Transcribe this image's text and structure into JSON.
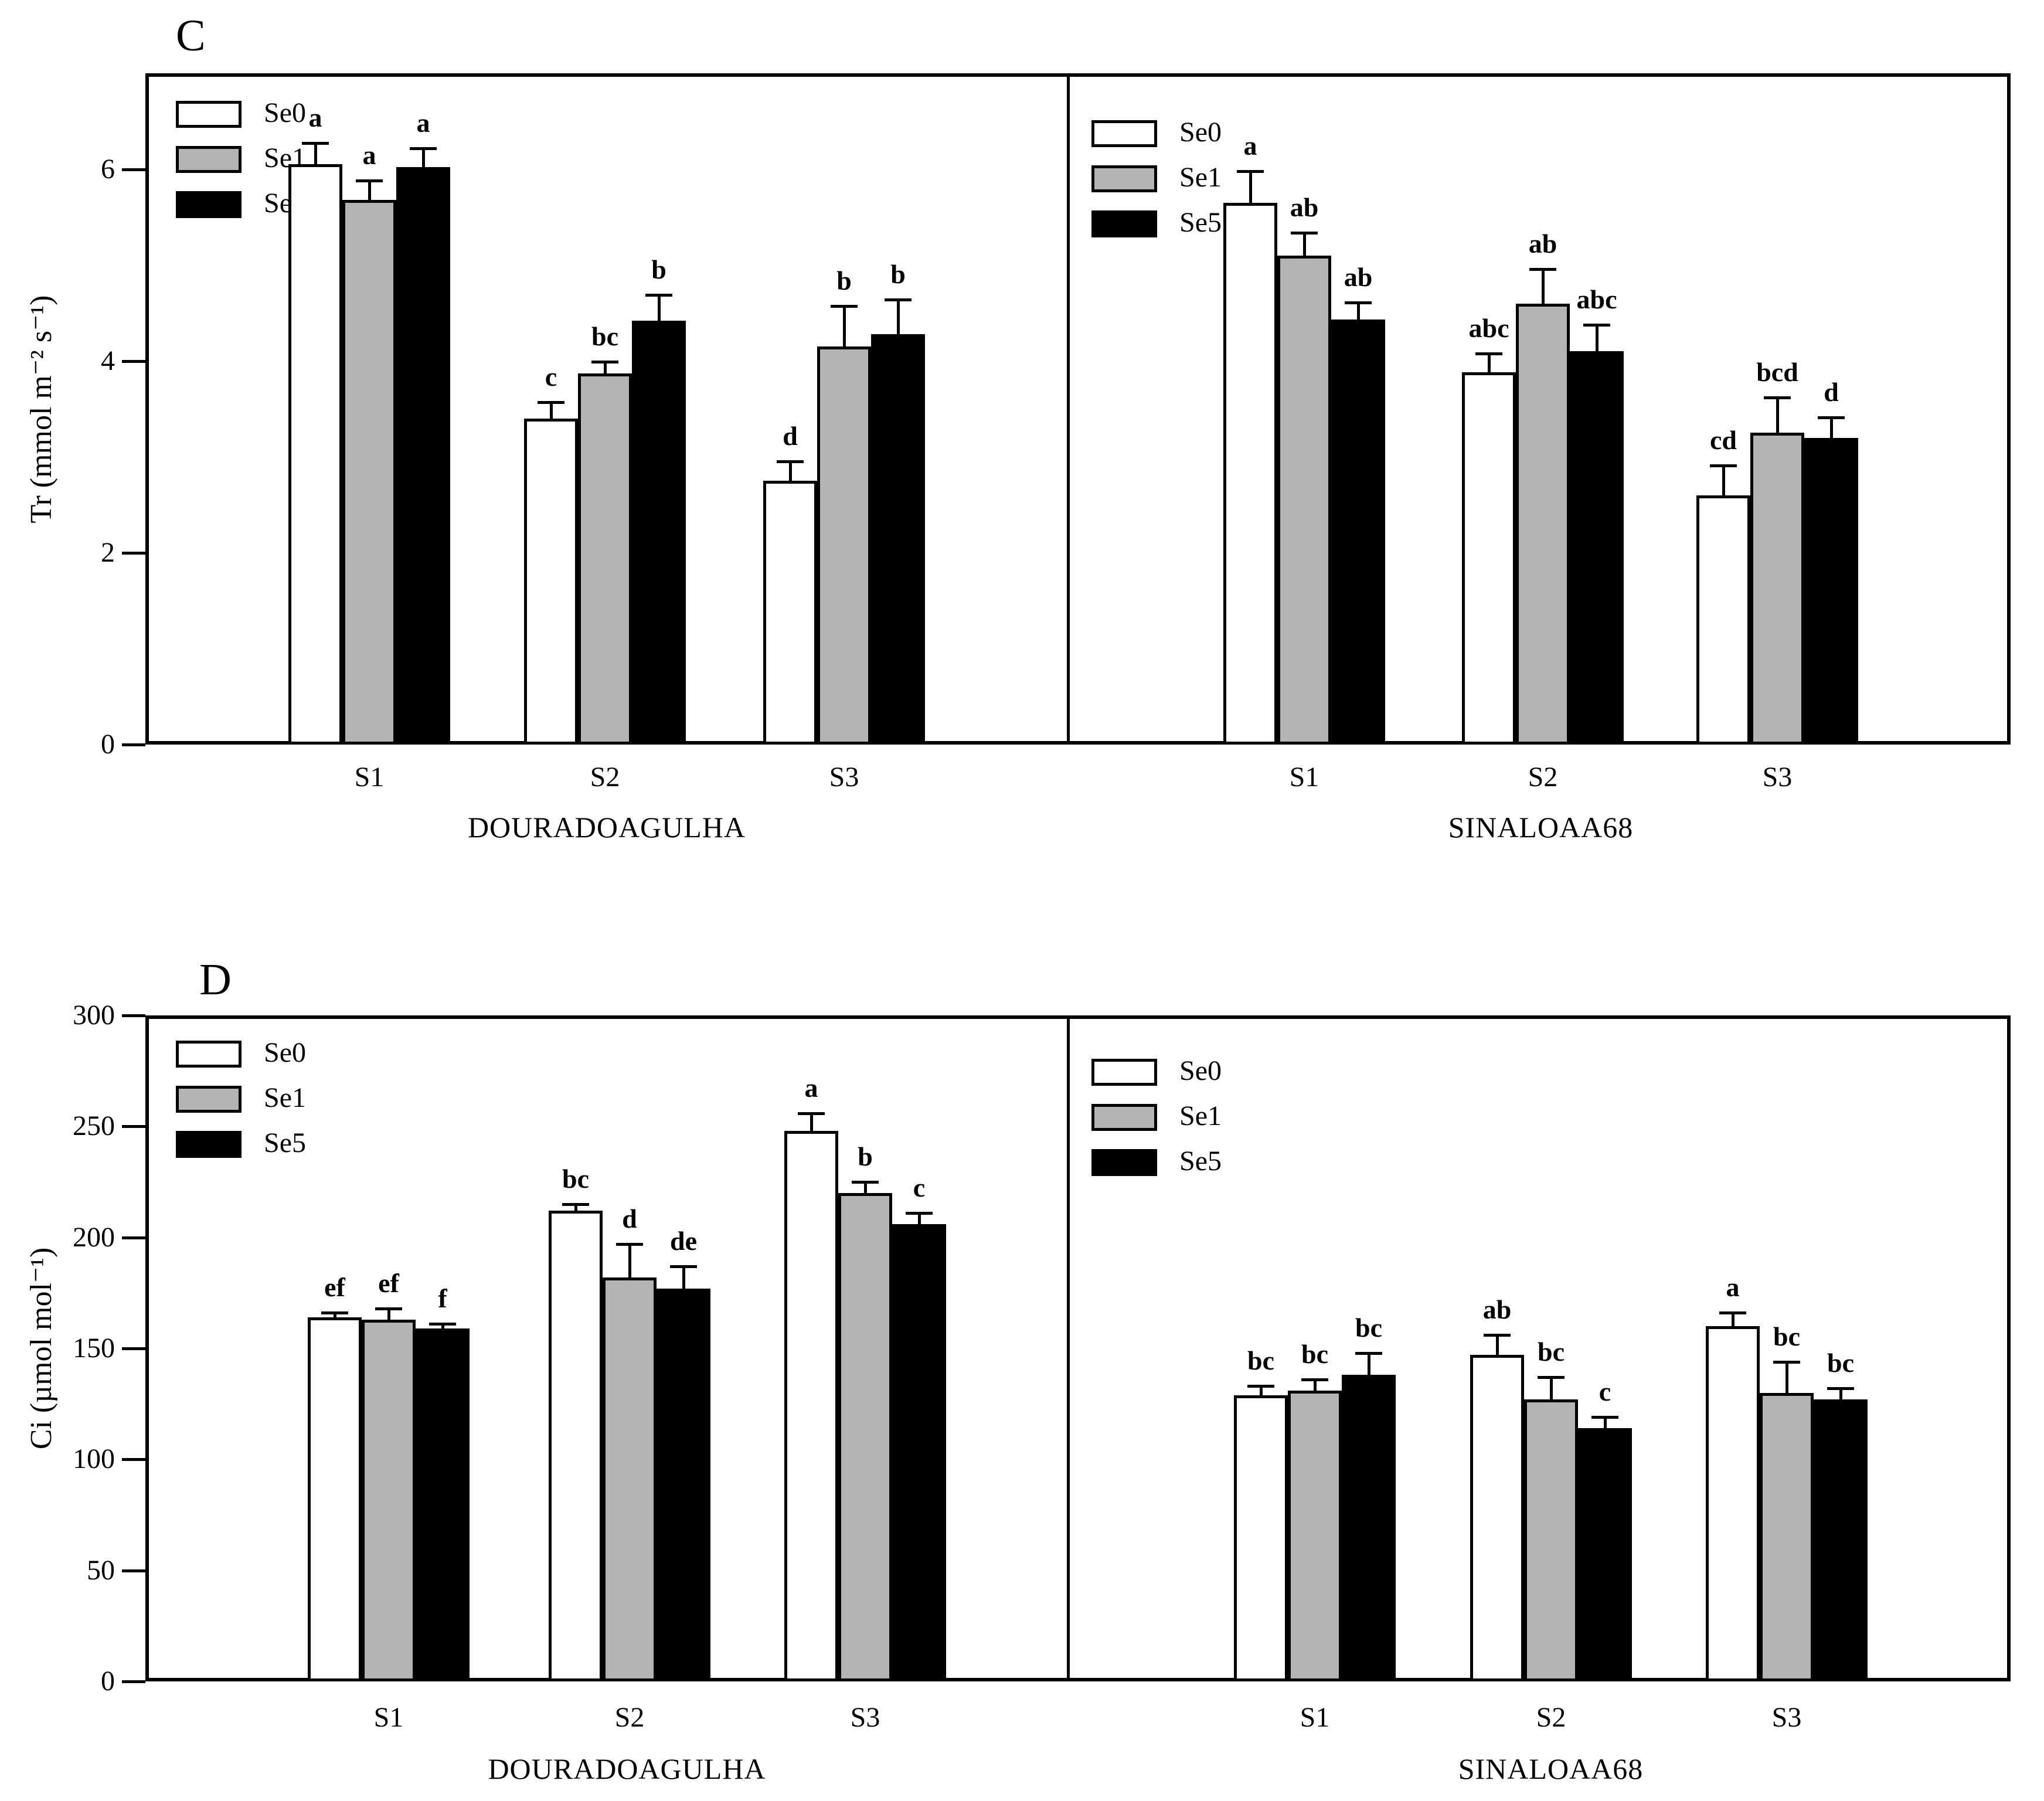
{
  "figure_title": "",
  "colors": {
    "Se0": "#ffffff",
    "Se1": "#b3b3b3",
    "Se5": "#000000",
    "axis": "#000000",
    "background": "#ffffff"
  },
  "chart_data": [
    {
      "type": "bar",
      "panel_label": "C",
      "ylabel": "Tr (mmol m⁻² s⁻¹)",
      "xlabel": "",
      "ylim": [
        0,
        7
      ],
      "yticks": [
        0,
        2,
        4,
        6
      ],
      "grid": false,
      "legend_position": "top-left inside each half",
      "legend_entries": [
        "Se0",
        "Se1",
        "Se5"
      ],
      "categories": [
        "S1",
        "S2",
        "S3"
      ],
      "groups": [
        {
          "name": "DOURADOAGULHA",
          "series": [
            {
              "name": "Se0",
              "color": "#ffffff",
              "values": [
                6.05,
                3.4,
                2.75
              ],
              "errors": [
                0.22,
                0.17,
                0.2
              ],
              "letters": [
                "a",
                "c",
                "d"
              ]
            },
            {
              "name": "Se1",
              "color": "#b3b3b3",
              "values": [
                5.68,
                3.87,
                4.15
              ],
              "errors": [
                0.2,
                0.12,
                0.42
              ],
              "letters": [
                "a",
                "bc",
                "b"
              ]
            },
            {
              "name": "Se5",
              "color": "#000000",
              "values": [
                6.02,
                4.42,
                4.28
              ],
              "errors": [
                0.2,
                0.27,
                0.36
              ],
              "letters": [
                "a",
                "b",
                "b"
              ]
            }
          ]
        },
        {
          "name": "SINALOAA68",
          "series": [
            {
              "name": "Se0",
              "color": "#ffffff",
              "values": [
                5.65,
                3.88,
                2.6
              ],
              "errors": [
                0.33,
                0.2,
                0.31
              ],
              "letters": [
                "a",
                "abc",
                "cd"
              ]
            },
            {
              "name": "Se1",
              "color": "#b3b3b3",
              "values": [
                5.1,
                4.6,
                3.25
              ],
              "errors": [
                0.24,
                0.36,
                0.37
              ],
              "letters": [
                "ab",
                "ab",
                "bcd"
              ]
            },
            {
              "name": "Se5",
              "color": "#000000",
              "values": [
                4.43,
                4.1,
                3.2
              ],
              "errors": [
                0.18,
                0.28,
                0.21
              ],
              "letters": [
                "ab",
                "abc",
                "d"
              ]
            }
          ]
        }
      ]
    },
    {
      "type": "bar",
      "panel_label": "D",
      "ylabel": "Ci (µmol mol⁻¹)",
      "xlabel": "",
      "ylim": [
        0,
        300
      ],
      "yticks": [
        0,
        50,
        100,
        150,
        200,
        250,
        300
      ],
      "grid": false,
      "legend_position": "top-left inside each half",
      "legend_entries": [
        "Se0",
        "Se1",
        "Se5"
      ],
      "categories": [
        "S1",
        "S2",
        "S3"
      ],
      "groups": [
        {
          "name": "DOURADOAGULHA",
          "series": [
            {
              "name": "Se0",
              "color": "#ffffff",
              "values": [
                164,
                212,
                248
              ],
              "errors": [
                2,
                3,
                8
              ],
              "letters": [
                "ef",
                "bc",
                "a"
              ]
            },
            {
              "name": "Se1",
              "color": "#b3b3b3",
              "values": [
                163,
                182,
                220
              ],
              "errors": [
                5,
                15,
                5
              ],
              "letters": [
                "ef",
                "d",
                "b"
              ]
            },
            {
              "name": "Se5",
              "color": "#000000",
              "values": [
                159,
                177,
                206
              ],
              "errors": [
                2,
                10,
                5
              ],
              "letters": [
                "f",
                "de",
                "c"
              ]
            }
          ]
        },
        {
          "name": "SINALOAA68",
          "series": [
            {
              "name": "Se0",
              "color": "#ffffff",
              "values": [
                129,
                147,
                160
              ],
              "errors": [
                4,
                9,
                6
              ],
              "letters": [
                "bc",
                "ab",
                "a"
              ]
            },
            {
              "name": "Se1",
              "color": "#b3b3b3",
              "values": [
                131,
                127,
                130
              ],
              "errors": [
                5,
                10,
                14
              ],
              "letters": [
                "bc",
                "bc",
                "bc"
              ]
            },
            {
              "name": "Se5",
              "color": "#000000",
              "values": [
                138,
                114,
                127
              ],
              "errors": [
                10,
                5,
                5
              ],
              "letters": [
                "bc",
                "c",
                "bc"
              ]
            }
          ]
        }
      ]
    }
  ]
}
